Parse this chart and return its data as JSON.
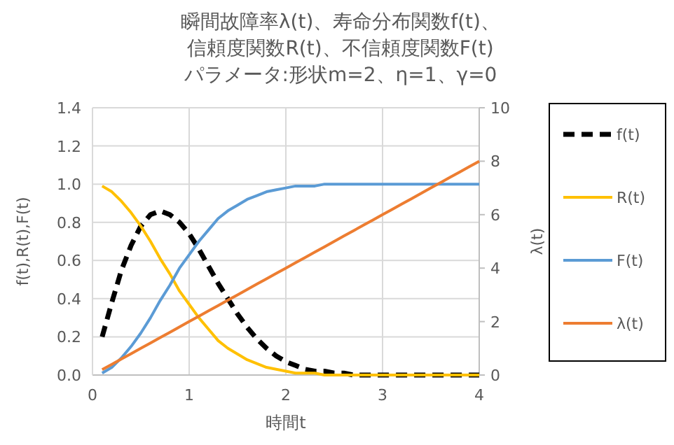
{
  "chart_data": {
    "type": "line",
    "title": "瞬間故障率λ(t)、寿命分布関数f(t)、信頼度関数R(t)、不信頼度関数F(t)",
    "subtitle": "パラメータ:形状m=2、η=1、γ=0",
    "xlabel": "時間t",
    "ylabel": "f(t),R(t),F(t)",
    "y2label": "λ(t)",
    "x": [
      0.1,
      0.2,
      0.3,
      0.4,
      0.5,
      0.6,
      0.7,
      0.8,
      0.9,
      1.0,
      1.1,
      1.2,
      1.3,
      1.4,
      1.5,
      1.6,
      1.7,
      1.8,
      1.9,
      2.0,
      2.1,
      2.2,
      2.3,
      2.4,
      2.5,
      2.6,
      2.7,
      2.8,
      2.9,
      3.0,
      3.1,
      3.2,
      3.3,
      3.4,
      3.5,
      3.6,
      3.7,
      3.8,
      3.9,
      4.0
    ],
    "series": [
      {
        "name": "f(t)",
        "color": "#000000",
        "line_style": "dashed",
        "values": [
          0.2,
          0.38,
          0.55,
          0.68,
          0.78,
          0.84,
          0.86,
          0.84,
          0.8,
          0.74,
          0.66,
          0.57,
          0.48,
          0.4,
          0.32,
          0.25,
          0.19,
          0.14,
          0.1,
          0.07,
          0.05,
          0.03,
          0.02,
          0.02,
          0.01,
          0.01,
          0,
          0,
          0,
          0,
          0,
          0,
          0,
          0,
          0,
          0,
          0,
          0,
          0,
          0
        ]
      },
      {
        "name": "R(t)",
        "color": "#ffc000",
        "line_style": "solid",
        "values": [
          0.99,
          0.96,
          0.91,
          0.85,
          0.78,
          0.7,
          0.61,
          0.53,
          0.44,
          0.37,
          0.3,
          0.24,
          0.18,
          0.14,
          0.11,
          0.08,
          0.06,
          0.04,
          0.03,
          0.02,
          0.01,
          0.01,
          0.01,
          0,
          0,
          0,
          0,
          0,
          0,
          0,
          0,
          0,
          0,
          0,
          0,
          0,
          0,
          0,
          0,
          0
        ]
      },
      {
        "name": "F(t)",
        "color": "#5b9bd5",
        "line_style": "solid",
        "values": [
          0.01,
          0.04,
          0.09,
          0.15,
          0.22,
          0.3,
          0.39,
          0.47,
          0.56,
          0.63,
          0.7,
          0.76,
          0.82,
          0.86,
          0.89,
          0.92,
          0.94,
          0.96,
          0.97,
          0.98,
          0.99,
          0.99,
          0.99,
          1,
          1,
          1,
          1,
          1,
          1,
          1,
          1,
          1,
          1,
          1,
          1,
          1,
          1,
          1,
          1,
          1
        ]
      },
      {
        "name": "λ(t)",
        "color": "#ed7d31",
        "line_style": "solid",
        "axis": "y2",
        "values": [
          0.2,
          0.4,
          0.6,
          0.8,
          1.0,
          1.2,
          1.4,
          1.6,
          1.8,
          2.0,
          2.2,
          2.4,
          2.6,
          2.8,
          3.0,
          3.2,
          3.4,
          3.6,
          3.8,
          4.0,
          4.2,
          4.4,
          4.6,
          4.8,
          5.0,
          5.2,
          5.4,
          5.6,
          5.8,
          6.0,
          6.2,
          6.4,
          6.6,
          6.8,
          7.0,
          7.2,
          7.4,
          7.6,
          7.8,
          8.0
        ]
      }
    ],
    "xlim": [
      0,
      4
    ],
    "xticks": [
      0,
      1,
      2,
      3,
      4
    ],
    "ylim": [
      0,
      1.4
    ],
    "yticks": [
      {
        "value": 0,
        "label": "0.0"
      },
      {
        "value": 0.2,
        "label": "0.2"
      },
      {
        "value": 0.4,
        "label": "0.4"
      },
      {
        "value": 0.6,
        "label": "0.6"
      },
      {
        "value": 0.8,
        "label": "0.8"
      },
      {
        "value": 1.0,
        "label": "1.0"
      },
      {
        "value": 1.2,
        "label": "1.2"
      },
      {
        "value": 1.4,
        "label": "1.4"
      }
    ],
    "y2lim": [
      0,
      10
    ],
    "y2ticks": [
      0,
      2,
      4,
      6,
      8,
      10
    ],
    "grid": true,
    "legend": "right",
    "marker": "none"
  }
}
